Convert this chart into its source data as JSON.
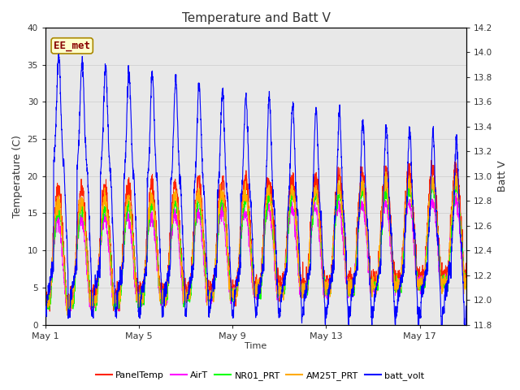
{
  "title": "Temperature and Batt V",
  "xlabel": "Time",
  "ylabel_left": "Temperature (C)",
  "ylabel_right": "Batt V",
  "ylim_left": [
    0,
    40
  ],
  "ylim_right": [
    11.8,
    14.2
  ],
  "xlim": [
    0,
    18
  ],
  "x_ticks": [
    0,
    4,
    8,
    12,
    16
  ],
  "x_tick_labels": [
    "May 1",
    "May 5",
    "May 9",
    "May 13",
    "May 17"
  ],
  "y_left_ticks": [
    0,
    5,
    10,
    15,
    20,
    25,
    30,
    35,
    40
  ],
  "y_right_ticks": [
    11.8,
    12.0,
    12.2,
    12.4,
    12.6,
    12.8,
    13.0,
    13.2,
    13.4,
    13.6,
    13.8,
    14.0,
    14.2
  ],
  "grid_color": "#cccccc",
  "plot_bg": "#e8e8e8",
  "legend_entries": [
    "PanelTemp",
    "AirT",
    "NR01_PRT",
    "AM25T_PRT",
    "batt_volt"
  ],
  "legend_colors": [
    "#ff2200",
    "#ff00ff",
    "#00ff00",
    "#ffaa00",
    "#0000ff"
  ],
  "annotation_text": "EE_met",
  "annotation_box_color": "#ffffcc",
  "annotation_box_edge": "#aa8800",
  "n_days": 18,
  "pts_per_day": 144
}
